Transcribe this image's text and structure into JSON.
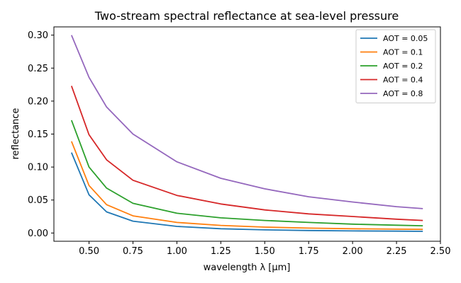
{
  "chart_data": {
    "type": "line",
    "title": "Two-stream spectral reflectance at sea-level pressure",
    "xlabel": "wavelength λ [μm]",
    "ylabel": "reflectance",
    "xlim": [
      0.3,
      2.5
    ],
    "ylim": [
      -0.0125,
      0.3125
    ],
    "xticks": [
      0.5,
      0.75,
      1.0,
      1.25,
      1.5,
      1.75,
      2.0,
      2.25,
      2.5
    ],
    "xtick_labels": [
      "0.50",
      "0.75",
      "1.00",
      "1.25",
      "1.50",
      "1.75",
      "2.00",
      "2.25",
      "2.50"
    ],
    "yticks": [
      0.0,
      0.05,
      0.1,
      0.15,
      0.2,
      0.25,
      0.3
    ],
    "ytick_labels": [
      "0.00",
      "0.05",
      "0.10",
      "0.15",
      "0.20",
      "0.25",
      "0.30"
    ],
    "grid": false,
    "legend_position": "top-right",
    "x": [
      0.4,
      0.5,
      0.6,
      0.75,
      1.0,
      1.25,
      1.5,
      1.75,
      2.0,
      2.25,
      2.4
    ],
    "series": [
      {
        "name": "AOT = 0.05",
        "color": "#1f77b4",
        "values": [
          0.122,
          0.058,
          0.032,
          0.018,
          0.01,
          0.0065,
          0.0048,
          0.0038,
          0.0032,
          0.0028,
          0.0025
        ]
      },
      {
        "name": "AOT = 0.1",
        "color": "#ff7f0e",
        "values": [
          0.139,
          0.072,
          0.043,
          0.026,
          0.016,
          0.0115,
          0.009,
          0.0075,
          0.0065,
          0.0058,
          0.0055
        ]
      },
      {
        "name": "AOT = 0.2",
        "color": "#2ca02c",
        "values": [
          0.171,
          0.1,
          0.068,
          0.045,
          0.03,
          0.023,
          0.019,
          0.016,
          0.0135,
          0.0118,
          0.011
        ]
      },
      {
        "name": "AOT = 0.4",
        "color": "#d62728",
        "values": [
          0.223,
          0.149,
          0.111,
          0.08,
          0.057,
          0.044,
          0.035,
          0.029,
          0.025,
          0.021,
          0.019
        ]
      },
      {
        "name": "AOT = 0.8",
        "color": "#9467bd",
        "values": [
          0.3,
          0.236,
          0.191,
          0.15,
          0.108,
          0.083,
          0.067,
          0.055,
          0.047,
          0.04,
          0.037
        ]
      }
    ]
  }
}
